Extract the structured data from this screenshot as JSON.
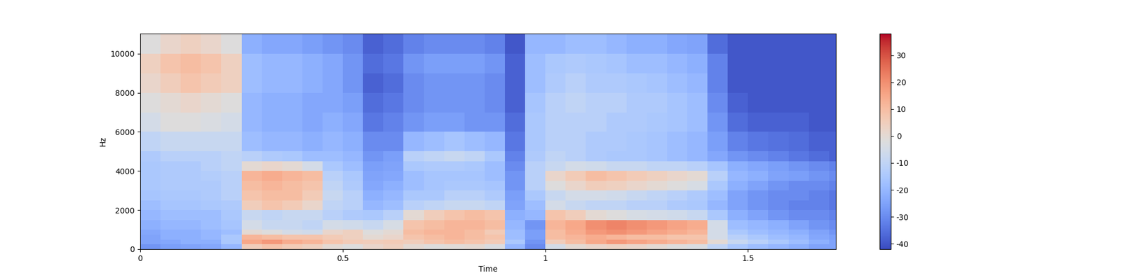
{
  "chart_data": {
    "type": "heatmap",
    "x_label": "Time",
    "y_label": "Hz",
    "xlim": [
      0,
      1.717
    ],
    "ylim": [
      0,
      11025
    ],
    "xticks": [
      0,
      0.5,
      1,
      1.5
    ],
    "yticks": [
      0,
      2000,
      4000,
      6000,
      8000,
      10000
    ],
    "x_edges": [
      0,
      0.05,
      0.1,
      0.15,
      0.2,
      0.25,
      0.3,
      0.35,
      0.4,
      0.45,
      0.5,
      0.55,
      0.6,
      0.65,
      0.7,
      0.75,
      0.8,
      0.85,
      0.9,
      0.95,
      1.0,
      1.05,
      1.1,
      1.15,
      1.2,
      1.25,
      1.3,
      1.35,
      1.4,
      1.45,
      1.5,
      1.55,
      1.6,
      1.65,
      1.7,
      1.717
    ],
    "y_edges": [
      0,
      250,
      500,
      750,
      1000,
      1500,
      2000,
      2500,
      3000,
      3500,
      4000,
      4500,
      5000,
      6000,
      7000,
      8000,
      9000,
      10000,
      11025
    ],
    "cells": [
      [
        -28,
        -26,
        -25,
        -24,
        -20,
        5,
        8,
        6,
        4,
        0,
        -2,
        2,
        4,
        0,
        -2,
        -1,
        0,
        -3,
        -20,
        -30,
        -5,
        0,
        2,
        3,
        2,
        0,
        -2,
        -3,
        -10,
        -15,
        -18,
        -20,
        -22,
        -25,
        -25
      ],
      [
        -25,
        -24,
        -22,
        -22,
        -15,
        15,
        18,
        14,
        12,
        8,
        6,
        5,
        6,
        5,
        8,
        10,
        8,
        6,
        -15,
        -28,
        5,
        10,
        15,
        18,
        16,
        14,
        12,
        10,
        0,
        -8,
        -12,
        -15,
        -18,
        -22,
        -25
      ],
      [
        -25,
        -22,
        -22,
        -20,
        -15,
        12,
        10,
        8,
        8,
        6,
        4,
        0,
        2,
        8,
        10,
        12,
        10,
        8,
        -18,
        -26,
        10,
        12,
        14,
        12,
        10,
        10,
        8,
        8,
        -5,
        -12,
        -15,
        -18,
        -20,
        -24,
        -26
      ],
      [
        -24,
        -22,
        -22,
        -20,
        -18,
        0,
        -2,
        -5,
        -6,
        2,
        4,
        -2,
        0,
        10,
        12,
        12,
        10,
        6,
        -18,
        -26,
        10,
        14,
        18,
        20,
        18,
        16,
        14,
        12,
        -5,
        -15,
        -18,
        -20,
        -22,
        -25,
        -28
      ],
      [
        -22,
        -20,
        -20,
        -18,
        -16,
        -5,
        -8,
        -8,
        -10,
        -5,
        -6,
        -8,
        -4,
        8,
        10,
        12,
        12,
        10,
        -20,
        -28,
        12,
        15,
        20,
        22,
        20,
        18,
        16,
        14,
        -5,
        -18,
        -20,
        -22,
        -25,
        -28,
        -30
      ],
      [
        -20,
        -18,
        -18,
        -18,
        -15,
        -8,
        -10,
        -8,
        -8,
        -12,
        -14,
        -15,
        -12,
        0,
        5,
        8,
        10,
        8,
        -22,
        -20,
        8,
        5,
        0,
        -2,
        -4,
        -5,
        -6,
        -8,
        -15,
        -22,
        -25,
        -28,
        -30,
        -30,
        -32
      ],
      [
        -18,
        -16,
        -16,
        -15,
        -14,
        5,
        8,
        6,
        2,
        -10,
        -12,
        -20,
        -18,
        -12,
        -10,
        -8,
        -8,
        -10,
        -25,
        -18,
        -5,
        -8,
        -10,
        -10,
        -12,
        -12,
        -14,
        -15,
        -20,
        -25,
        -28,
        -30,
        -32,
        -32,
        -34
      ],
      [
        -16,
        -15,
        -15,
        -14,
        -12,
        8,
        10,
        10,
        6,
        -8,
        -12,
        -22,
        -20,
        -15,
        -15,
        -12,
        -12,
        -14,
        -26,
        -15,
        -8,
        -5,
        -5,
        -6,
        -8,
        -10,
        -12,
        -14,
        -18,
        -25,
        -28,
        -30,
        -30,
        -32,
        -34
      ],
      [
        -15,
        -14,
        -14,
        -14,
        -12,
        10,
        12,
        10,
        8,
        -10,
        -14,
        -24,
        -22,
        -18,
        -16,
        -15,
        -15,
        -16,
        -28,
        -12,
        -2,
        2,
        5,
        4,
        2,
        0,
        -2,
        -4,
        -15,
        -22,
        -25,
        -28,
        -30,
        -30,
        -32
      ],
      [
        -15,
        -14,
        -14,
        -13,
        -12,
        12,
        14,
        12,
        10,
        -12,
        -15,
        -25,
        -24,
        -18,
        -16,
        -16,
        -16,
        -18,
        -28,
        -12,
        2,
        6,
        10,
        8,
        6,
        4,
        2,
        0,
        -12,
        -20,
        -22,
        -25,
        -26,
        -28,
        -30
      ],
      [
        -15,
        -14,
        -14,
        -12,
        -10,
        0,
        2,
        0,
        -5,
        -15,
        -18,
        -26,
        -25,
        -15,
        -14,
        -14,
        -15,
        -18,
        -30,
        -12,
        -8,
        -5,
        -6,
        -8,
        -8,
        -10,
        -10,
        -12,
        -16,
        -22,
        -24,
        -26,
        -28,
        -30,
        -32
      ],
      [
        -14,
        -12,
        -12,
        -12,
        -10,
        -12,
        -14,
        -15,
        -18,
        -18,
        -20,
        -28,
        -26,
        -12,
        -10,
        -8,
        -10,
        -15,
        -32,
        -14,
        -10,
        -12,
        -14,
        -15,
        -15,
        -16,
        -18,
        -20,
        -24,
        -28,
        -30,
        -32,
        -34,
        -36,
        -38
      ],
      [
        -10,
        -8,
        -8,
        -8,
        -8,
        -18,
        -20,
        -20,
        -22,
        -20,
        -22,
        -30,
        -30,
        -20,
        -18,
        -16,
        -18,
        -20,
        -34,
        -15,
        -12,
        -12,
        -14,
        -14,
        -15,
        -16,
        -18,
        -20,
        -26,
        -32,
        -34,
        -35,
        -36,
        -38,
        -38
      ],
      [
        -5,
        -2,
        -2,
        -3,
        -5,
        -20,
        -22,
        -22,
        -24,
        -22,
        -24,
        -34,
        -32,
        -28,
        -26,
        -26,
        -28,
        -28,
        -36,
        -15,
        -12,
        -12,
        -12,
        -14,
        -14,
        -15,
        -16,
        -18,
        -28,
        -36,
        -38,
        -38,
        -38,
        -40,
        -40
      ],
      [
        -2,
        0,
        2,
        0,
        -2,
        -20,
        -22,
        -22,
        -24,
        -24,
        -26,
        -36,
        -34,
        -30,
        -28,
        -28,
        -28,
        -30,
        -38,
        -16,
        -12,
        -10,
        -12,
        -12,
        -14,
        -14,
        -16,
        -18,
        -30,
        -38,
        -40,
        -40,
        -40,
        -40,
        -40
      ],
      [
        2,
        5,
        8,
        6,
        4,
        -18,
        -20,
        -20,
        -22,
        -24,
        -28,
        -38,
        -36,
        -30,
        -28,
        -28,
        -28,
        -30,
        -38,
        -18,
        -14,
        -12,
        -14,
        -14,
        -15,
        -16,
        -18,
        -20,
        -32,
        -40,
        -40,
        -40,
        -40,
        -40,
        -40
      ],
      [
        4,
        8,
        10,
        8,
        4,
        -18,
        -20,
        -20,
        -22,
        -24,
        -28,
        -36,
        -34,
        -28,
        -26,
        -26,
        -26,
        -28,
        -38,
        -18,
        -15,
        -14,
        -15,
        -16,
        -18,
        -18,
        -20,
        -22,
        -32,
        -40,
        -40,
        -40,
        -40,
        -40,
        -40
      ],
      [
        -2,
        2,
        4,
        2,
        -2,
        -22,
        -24,
        -24,
        -26,
        -28,
        -30,
        -38,
        -36,
        -32,
        -30,
        -30,
        -30,
        -32,
        -40,
        -20,
        -20,
        -18,
        -18,
        -20,
        -22,
        -22,
        -24,
        -25,
        -36,
        -40,
        -40,
        -40,
        -40,
        -40,
        -40
      ]
    ],
    "colorbar": {
      "range": [
        -42,
        38
      ],
      "ticks": [
        -40,
        -30,
        -20,
        -10,
        0,
        10,
        20,
        30
      ]
    }
  }
}
